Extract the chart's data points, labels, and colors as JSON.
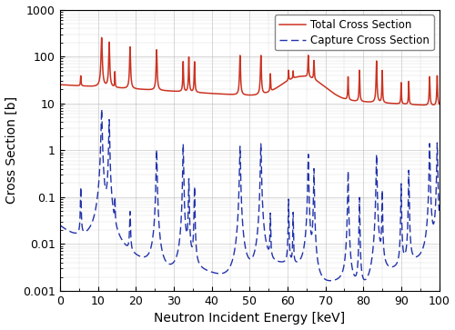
{
  "xlabel": "Neutron Incident Energy [keV]",
  "ylabel": "Cross Section [b]",
  "xlim": [
    0,
    100
  ],
  "ylim": [
    0.001,
    1000
  ],
  "legend_entries": [
    "Total Cross Section",
    "Capture Cross Section"
  ],
  "total_color": "#cc3322",
  "capture_color": "#2233aa",
  "background_color": "#ffffff",
  "grid_color": "#bbbbbb",
  "figsize": [
    5.0,
    3.63
  ],
  "dpi": 100
}
